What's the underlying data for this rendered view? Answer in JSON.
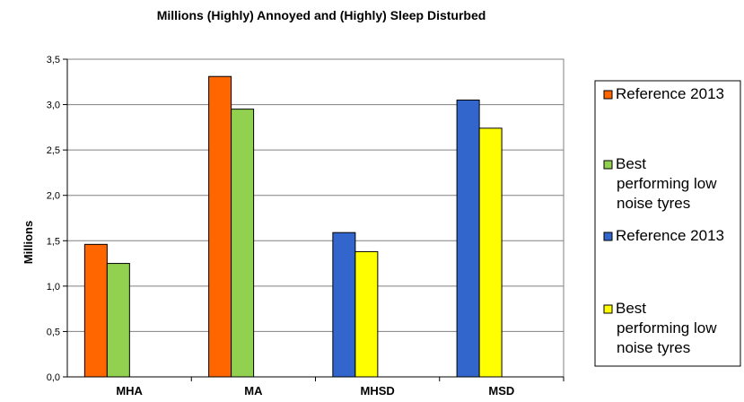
{
  "chart_data": {
    "type": "bar",
    "title": "Millions (Highly) Annoyed and (Highly) Sleep Disturbed",
    "ylabel": "Millions",
    "xlabel": "",
    "ylim": [
      0,
      3.5
    ],
    "yticks": [
      "0,0",
      "0,5",
      "1,0",
      "1,5",
      "2,0",
      "2,5",
      "3,0",
      "3,5"
    ],
    "categories": [
      "MHA",
      "MA",
      "MHSD",
      "MSD"
    ],
    "grid": true,
    "legend_position": "right",
    "series": [
      {
        "name": "Reference 2013",
        "color": "#ff6600",
        "values": [
          1.46,
          3.31,
          null,
          null
        ]
      },
      {
        "name": "Best performing low noise tyres",
        "color": "#92d050",
        "values": [
          1.25,
          2.95,
          null,
          null
        ]
      },
      {
        "name": "Reference 2013",
        "color": "#3366cc",
        "values": [
          null,
          null,
          1.59,
          3.05
        ]
      },
      {
        "name": "Best performing low noise tyres",
        "color": "#ffff00",
        "values": [
          null,
          null,
          1.38,
          2.74
        ]
      }
    ]
  }
}
